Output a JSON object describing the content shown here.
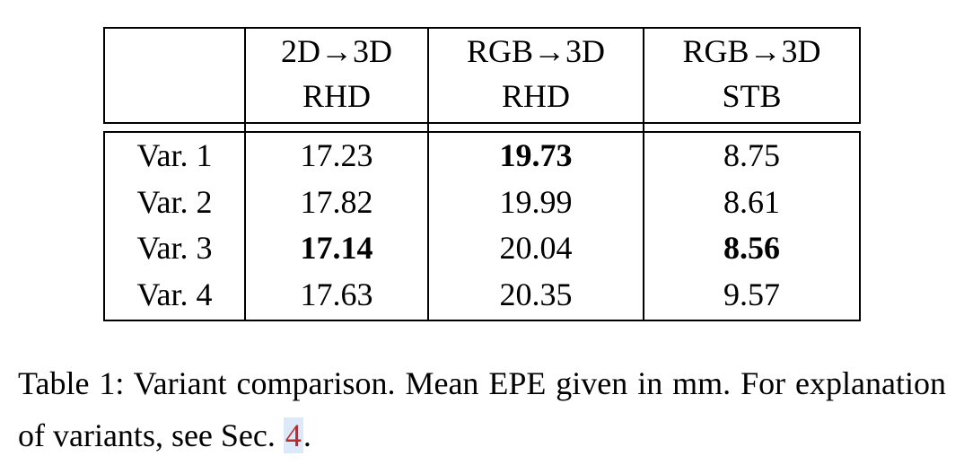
{
  "table": {
    "header": [
      [
        "2D→3D",
        "RHD"
      ],
      [
        "RGB→3D",
        "RHD"
      ],
      [
        "RGB→3D",
        "STB"
      ]
    ],
    "rows": [
      {
        "label": "Var. 1",
        "values": [
          "17.23",
          "19.73",
          "8.75"
        ]
      },
      {
        "label": "Var. 2",
        "values": [
          "17.82",
          "19.99",
          "8.61"
        ]
      },
      {
        "label": "Var. 3",
        "values": [
          "17.14",
          "20.04",
          "8.56"
        ]
      },
      {
        "label": "Var. 4",
        "values": [
          "17.63",
          "20.35",
          "9.57"
        ]
      }
    ],
    "bold_cells": [
      [
        2,
        0
      ],
      [
        0,
        1
      ],
      [
        2,
        2
      ]
    ]
  },
  "caption": {
    "text": "Table 1: Variant comparison. Mean EPE given in mm. For explanation of variants, see Sec.",
    "ref": "4",
    "end": "."
  }
}
